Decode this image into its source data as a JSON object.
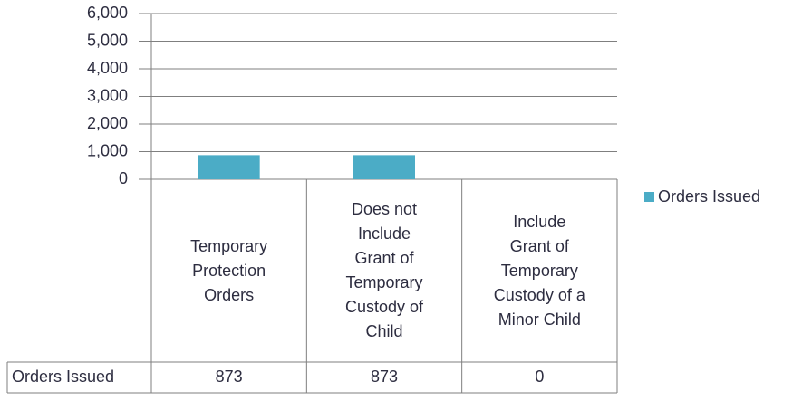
{
  "chart_data": {
    "type": "bar",
    "categories": [
      "Temporary Protection Orders",
      "Does not Include Grant of Temporary Custody of Child",
      "Include Grant of Temporary Custody of a Minor Child"
    ],
    "series": [
      {
        "name": "Orders Issued",
        "color": "#4bacc6",
        "values": [
          873,
          873,
          0
        ]
      }
    ],
    "ylim": [
      0,
      6000
    ],
    "yticks": [
      0,
      {
        "value": 1000,
        "label": "1,000"
      },
      {
        "value": 2000,
        "label": "2,000"
      },
      {
        "value": 3000,
        "label": "3,000"
      },
      {
        "value": 4000,
        "label": "4,000"
      },
      {
        "value": 5000,
        "label": "5,000"
      },
      {
        "value": 6000,
        "label": "6,000"
      }
    ],
    "grid": true,
    "legend": "right"
  }
}
